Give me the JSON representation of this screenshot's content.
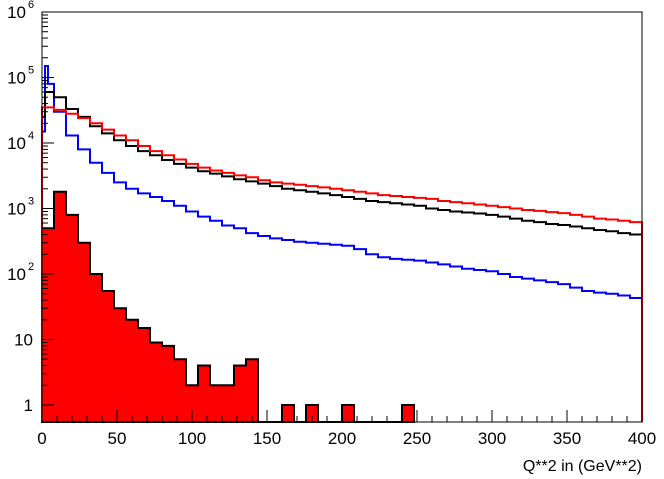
{
  "chart_data": {
    "type": "line",
    "title": "",
    "xlabel": "Q**2 in (GeV**2)",
    "ylabel": "",
    "xlim": [
      0,
      400
    ],
    "ylim": [
      0.55,
      1000000
    ],
    "y_scale": "log",
    "grid": false,
    "legend": "none",
    "bin_width": 8,
    "x_ticks": [
      0,
      50,
      100,
      150,
      200,
      250,
      300,
      350,
      400
    ],
    "x_tick_labels": [
      "0",
      "50",
      "100",
      "150",
      "200",
      "250",
      "300",
      "350",
      "400"
    ],
    "y_ticks": [
      1,
      10,
      100,
      1000,
      10000,
      100000,
      1000000
    ],
    "y_tick_labels": [
      {
        "base": "1",
        "exp": ""
      },
      {
        "base": "10",
        "exp": ""
      },
      {
        "base": "10",
        "exp": "2"
      },
      {
        "base": "10",
        "exp": "3"
      },
      {
        "base": "10",
        "exp": "4"
      },
      {
        "base": "10",
        "exp": "5"
      },
      {
        "base": "10",
        "exp": "6"
      }
    ],
    "series": [
      {
        "color": "#0000ff",
        "style": "step-line",
        "x": [
          0,
          2,
          4,
          8,
          16,
          24,
          32,
          40,
          48,
          56,
          64,
          72,
          80,
          88,
          96,
          104,
          112,
          120,
          128,
          136,
          144,
          152,
          160,
          168,
          176,
          184,
          192,
          200,
          208,
          216,
          224,
          232,
          240,
          248,
          256,
          264,
          272,
          280,
          288,
          296,
          304,
          312,
          320,
          328,
          336,
          344,
          352,
          360,
          368,
          376,
          384,
          392,
          400
        ],
        "values": [
          15000,
          150000,
          80000,
          30000,
          13000,
          8000,
          5000,
          3500,
          2500,
          2000,
          1700,
          1500,
          1300,
          1100,
          900,
          750,
          650,
          550,
          500,
          420,
          380,
          350,
          330,
          310,
          300,
          290,
          280,
          270,
          240,
          200,
          180,
          170,
          165,
          160,
          150,
          140,
          130,
          120,
          115,
          110,
          100,
          90,
          85,
          80,
          75,
          70,
          62,
          55,
          52,
          50,
          47,
          43,
          30
        ],
        "series_end": 400
      },
      {
        "color": "#000000",
        "style": "step-line",
        "x": [
          0,
          2,
          4,
          8,
          16,
          24,
          32,
          40,
          48,
          56,
          64,
          72,
          80,
          88,
          96,
          104,
          112,
          120,
          128,
          136,
          144,
          152,
          160,
          168,
          176,
          184,
          192,
          200,
          208,
          216,
          224,
          232,
          240,
          248,
          256,
          264,
          272,
          280,
          288,
          296,
          304,
          312,
          320,
          328,
          336,
          344,
          352,
          360,
          368,
          376,
          384,
          392,
          400
        ],
        "values": [
          25000,
          60000,
          60000,
          50000,
          33000,
          25000,
          18000,
          14000,
          11000,
          9000,
          7500,
          6500,
          5500,
          4800,
          4200,
          3700,
          3400,
          3100,
          2800,
          2600,
          2400,
          2200,
          2000,
          1900,
          1800,
          1700,
          1600,
          1500,
          1400,
          1300,
          1250,
          1200,
          1150,
          1100,
          1000,
          950,
          900,
          870,
          840,
          800,
          750,
          700,
          650,
          620,
          580,
          560,
          530,
          500,
          470,
          450,
          420,
          400,
          380
        ],
        "series_end": 400
      },
      {
        "color": "#ff0000",
        "style": "step-line",
        "x": [
          0,
          2,
          4,
          8,
          16,
          24,
          32,
          40,
          48,
          56,
          64,
          72,
          80,
          88,
          96,
          104,
          112,
          120,
          128,
          136,
          144,
          152,
          160,
          168,
          176,
          184,
          192,
          200,
          208,
          216,
          224,
          232,
          240,
          248,
          256,
          264,
          272,
          280,
          288,
          296,
          304,
          312,
          320,
          328,
          336,
          344,
          352,
          360,
          368,
          376,
          384,
          392,
          400
        ],
        "values": [
          35000,
          35000,
          35000,
          32000,
          28000,
          24000,
          20000,
          16000,
          13000,
          11000,
          9000,
          7500,
          6500,
          5600,
          4800,
          4200,
          3800,
          3500,
          3200,
          3000,
          2700,
          2500,
          2400,
          2300,
          2200,
          2100,
          2000,
          1900,
          1800,
          1700,
          1600,
          1550,
          1500,
          1450,
          1400,
          1300,
          1250,
          1200,
          1150,
          1100,
          1050,
          1000,
          950,
          920,
          880,
          850,
          800,
          750,
          700,
          680,
          650,
          620,
          600
        ],
        "series_end": 400
      },
      {
        "color": "#ff0000",
        "style": "filled-histogram",
        "x": [
          0,
          8,
          16,
          24,
          32,
          40,
          48,
          56,
          64,
          72,
          80,
          88,
          96,
          104,
          112,
          120,
          128,
          136,
          144,
          152,
          160,
          168,
          176,
          184,
          192,
          200,
          208,
          216,
          224,
          232,
          240,
          248
        ],
        "values": [
          500,
          1800,
          800,
          300,
          100,
          55,
          30,
          20,
          15,
          9,
          8,
          5,
          2,
          4,
          2,
          2,
          4,
          5,
          0,
          0,
          1,
          0,
          1,
          0,
          0,
          1,
          0,
          0,
          0,
          0,
          1,
          0
        ],
        "series_end": 248
      }
    ]
  }
}
